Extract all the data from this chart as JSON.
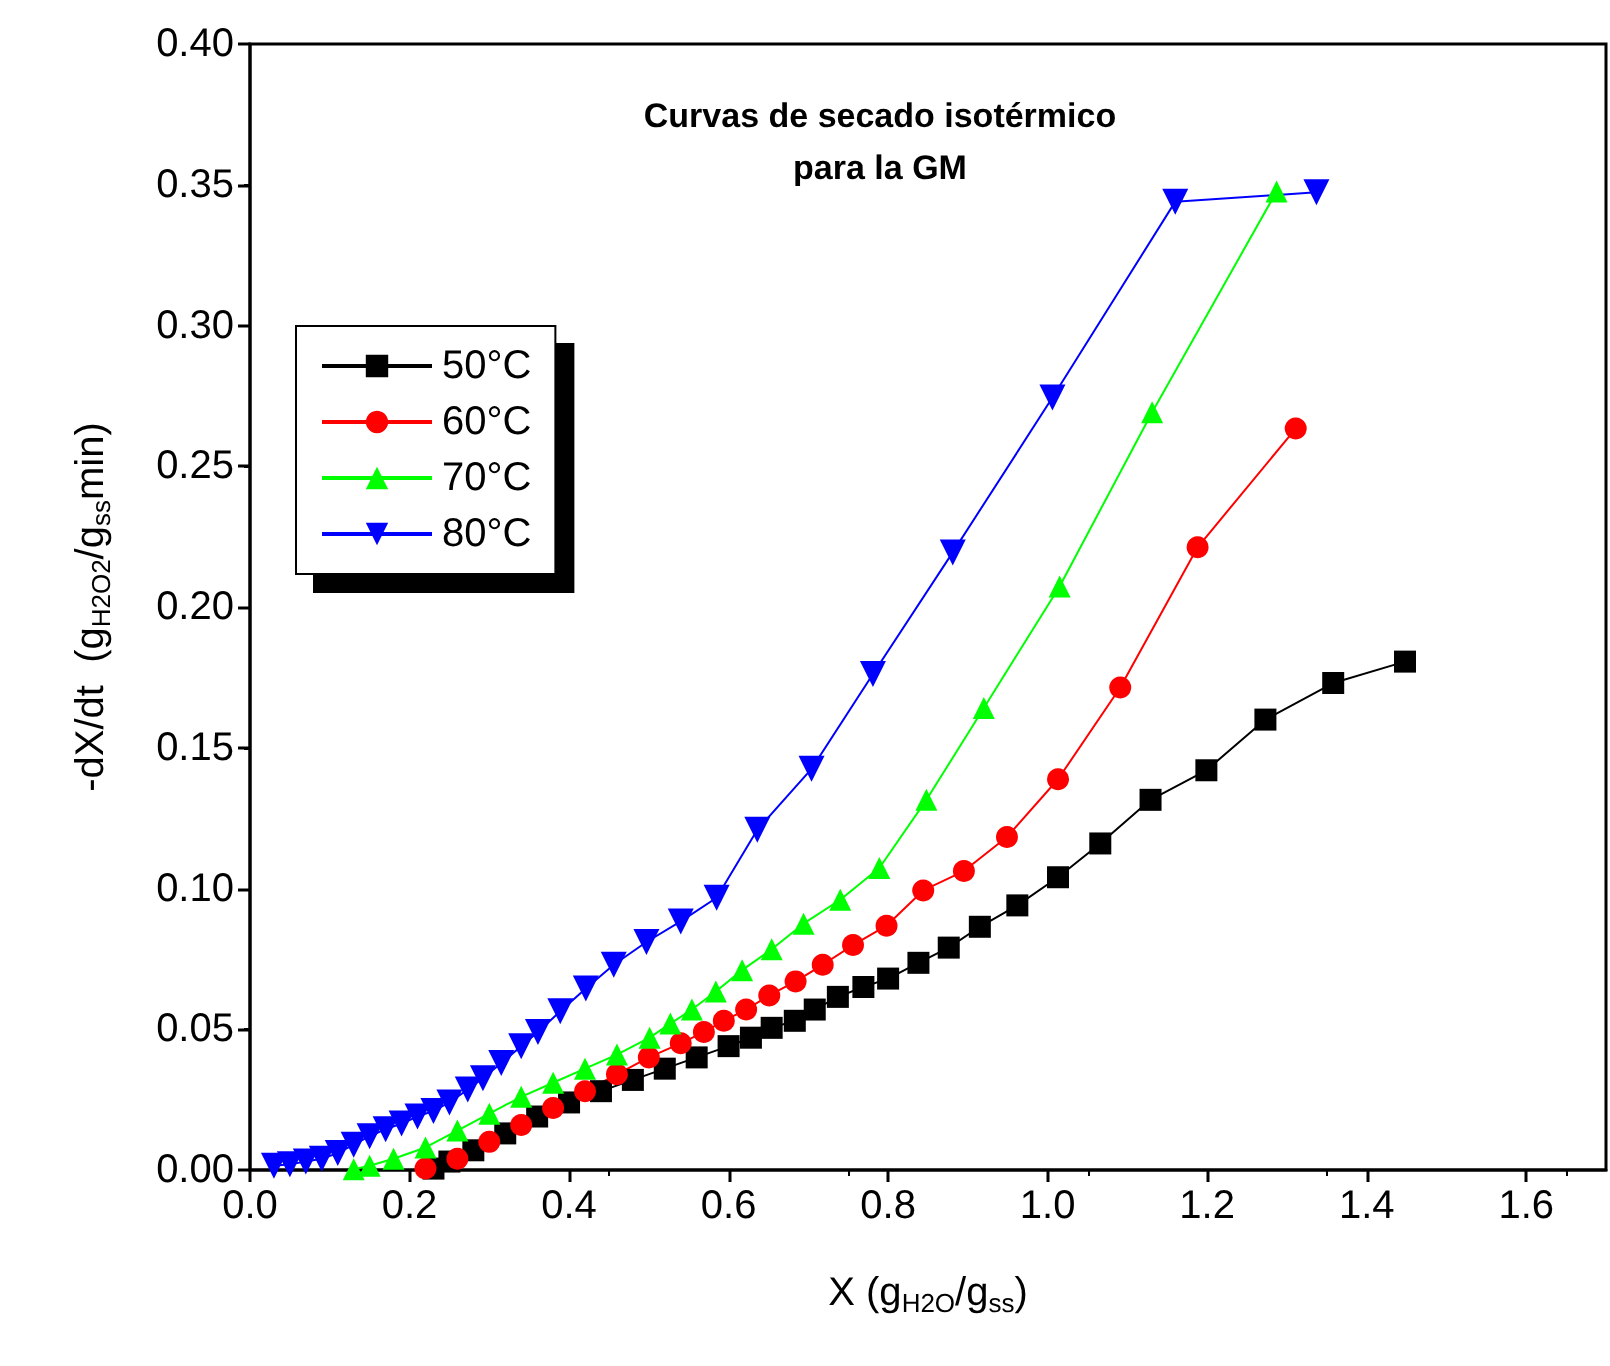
{
  "chart_data": {
    "type": "line",
    "title": "Curvas de secado isotérmico\npara la GM",
    "xlabel": "X (g$_{H2O}$/g$_{ss}$)",
    "ylabel": "-dX/dt  (g$_{H2O2}$/g$_{ss}$min)",
    "xlim": [
      0,
      1.7
    ],
    "xticks": [
      {
        "value": 0,
        "label": "0.0"
      },
      {
        "value": 0.2,
        "label": "0.2"
      },
      {
        "value": 0.4,
        "label": "0.4"
      },
      {
        "value": 0.6,
        "label": "0.6"
      },
      {
        "value": 0.8,
        "label": "0.8"
      },
      {
        "value": 1.0,
        "label": "1.0"
      },
      {
        "value": 1.2,
        "label": "1.2"
      },
      {
        "value": 1.4,
        "label": "1.4"
      },
      {
        "value": 1.6,
        "label": "1.6"
      }
    ],
    "ylim": [
      0,
      0.4
    ],
    "yticks": [
      {
        "value": 0,
        "label": "0.00"
      },
      {
        "value": 0.05,
        "label": "0.05"
      },
      {
        "value": 0.1,
        "label": "0.10"
      },
      {
        "value": 0.15,
        "label": "0.15"
      },
      {
        "value": 0.2,
        "label": "0.20"
      },
      {
        "value": 0.25,
        "label": "0.25"
      },
      {
        "value": 0.3,
        "label": "0.30"
      },
      {
        "value": 0.35,
        "label": "0.35"
      },
      {
        "value": 0.4,
        "label": "0.40"
      }
    ],
    "grid": false,
    "legend": "top left",
    "line_style": "solid",
    "series": [
      {
        "name": "50°C",
        "color": "#000000",
        "marker": "square",
        "x": [
          0.23,
          0.25,
          0.28,
          0.32,
          0.36,
          0.4,
          0.44,
          0.48,
          0.52,
          0.56,
          0.6,
          0.628,
          0.654,
          0.683,
          0.708,
          0.737,
          0.769,
          0.8,
          0.838,
          0.876,
          0.915,
          0.962,
          1.013,
          1.066,
          1.129,
          1.199,
          1.273,
          1.358,
          1.448
        ],
        "values": [
          0.0005,
          0.003,
          0.007,
          0.013,
          0.019,
          0.024,
          0.028,
          0.032,
          0.036,
          0.04,
          0.044,
          0.047,
          0.0505,
          0.053,
          0.057,
          0.0615,
          0.065,
          0.068,
          0.0736,
          0.079,
          0.0864,
          0.094,
          0.104,
          0.116,
          0.1315,
          0.142,
          0.16,
          0.173,
          0.1806
        ]
      },
      {
        "name": "60°C",
        "color": "#ff0000",
        "marker": "circle",
        "x": [
          0.22,
          0.26,
          0.3,
          0.34,
          0.38,
          0.42,
          0.46,
          0.5,
          0.54,
          0.569,
          0.594,
          0.622,
          0.651,
          0.684,
          0.718,
          0.756,
          0.798,
          0.844,
          0.895,
          0.949,
          1.013,
          1.091,
          1.188,
          1.311
        ],
        "values": [
          0.0005,
          0.004,
          0.01,
          0.016,
          0.022,
          0.028,
          0.034,
          0.04,
          0.045,
          0.049,
          0.053,
          0.057,
          0.062,
          0.067,
          0.0729,
          0.0799,
          0.0868,
          0.0993,
          0.1062,
          0.1183,
          0.1388,
          0.1714,
          0.2212,
          0.2634
        ]
      },
      {
        "name": "70°C",
        "color": "#00ff00",
        "marker": "triangle",
        "x": [
          0.13,
          0.15,
          0.18,
          0.22,
          0.26,
          0.3,
          0.34,
          0.38,
          0.42,
          0.46,
          0.501,
          0.527,
          0.554,
          0.584,
          0.617,
          0.654,
          0.694,
          0.74,
          0.789,
          0.848,
          0.92,
          1.015,
          1.131,
          1.287
        ],
        "values": [
          0.0003,
          0.0015,
          0.004,
          0.008,
          0.014,
          0.02,
          0.026,
          0.031,
          0.036,
          0.041,
          0.047,
          0.052,
          0.057,
          0.0634,
          0.071,
          0.0784,
          0.0875,
          0.096,
          0.1073,
          0.1315,
          0.1641,
          0.2073,
          0.2692,
          0.3476
        ]
      },
      {
        "name": "80°C",
        "color": "#0000ff",
        "marker": "triangle-down",
        "x": [
          0.03,
          0.05,
          0.07,
          0.09,
          0.11,
          0.13,
          0.15,
          0.17,
          0.19,
          0.21,
          0.23,
          0.25,
          0.273,
          0.292,
          0.315,
          0.34,
          0.361,
          0.389,
          0.421,
          0.456,
          0.497,
          0.54,
          0.585,
          0.636,
          0.704,
          0.781,
          0.881,
          1.006,
          1.16,
          1.337
        ],
        "values": [
          0.0015,
          0.002,
          0.003,
          0.004,
          0.006,
          0.009,
          0.012,
          0.0145,
          0.0165,
          0.019,
          0.021,
          0.024,
          0.0286,
          0.0326,
          0.038,
          0.044,
          0.049,
          0.0564,
          0.0645,
          0.0729,
          0.081,
          0.0883,
          0.0967,
          0.1209,
          0.1425,
          0.1762,
          0.2194,
          0.2744,
          0.344,
          0.3473
        ]
      }
    ]
  }
}
